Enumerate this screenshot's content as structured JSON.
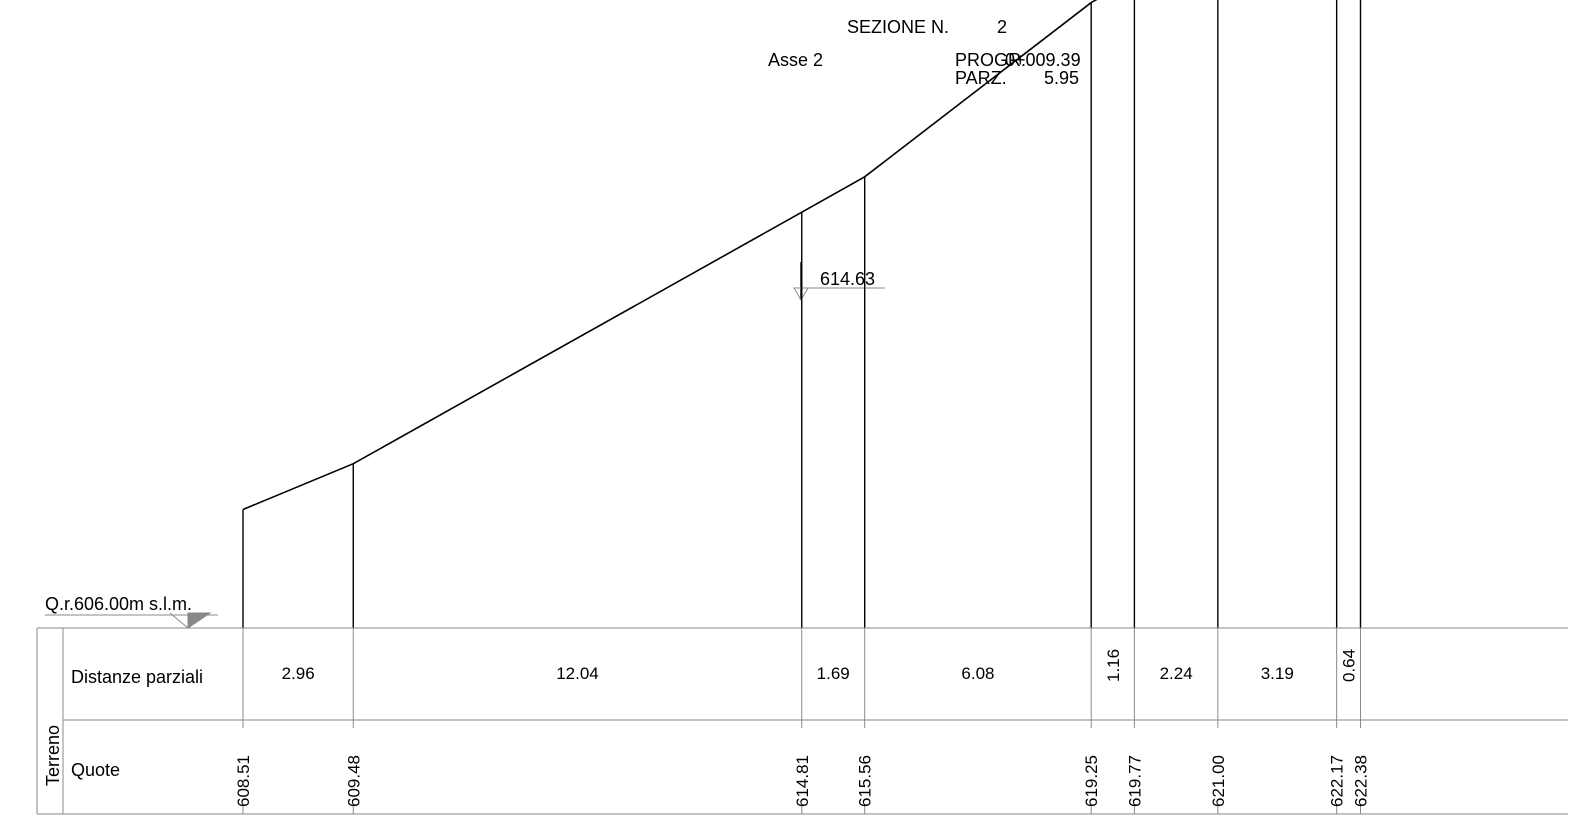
{
  "header": {
    "section_label": "SEZIONE N.",
    "section_number": "2",
    "axis_label": "Asse 2",
    "progr_label": "PROGR.",
    "progr_value": "0+009.39",
    "parz_label": "PARZ.",
    "parz_value": "5.95"
  },
  "reference_level": "Q.r.606.00m s.l.m.",
  "marker_elevation": "614.63",
  "table": {
    "group_label": "Terreno",
    "row1_label": "Distanze parziali",
    "row2_label": "Quote"
  },
  "chart_data": {
    "type": "line",
    "reference_elevation": 606.0,
    "points": [
      {
        "x": 0.0,
        "elev": 608.51,
        "label": "608.51"
      },
      {
        "x": 2.96,
        "elev": 609.48,
        "label": "609.48"
      },
      {
        "x": 15.0,
        "elev": 614.81,
        "label": "614.81"
      },
      {
        "x": 16.69,
        "elev": 615.56,
        "label": "615.56"
      },
      {
        "x": 22.77,
        "elev": 619.25,
        "label": "619.25"
      },
      {
        "x": 23.93,
        "elev": 619.77,
        "label": "619.77"
      },
      {
        "x": 26.17,
        "elev": 621.0,
        "label": "621.00"
      },
      {
        "x": 29.36,
        "elev": 622.17,
        "label": "622.17"
      },
      {
        "x": 30.0,
        "elev": 622.38,
        "label": "622.38"
      }
    ],
    "partial_distances": [
      "2.96",
      "12.04",
      "1.69",
      "6.08",
      "1.16",
      "2.24",
      "3.19",
      "0.64"
    ]
  }
}
